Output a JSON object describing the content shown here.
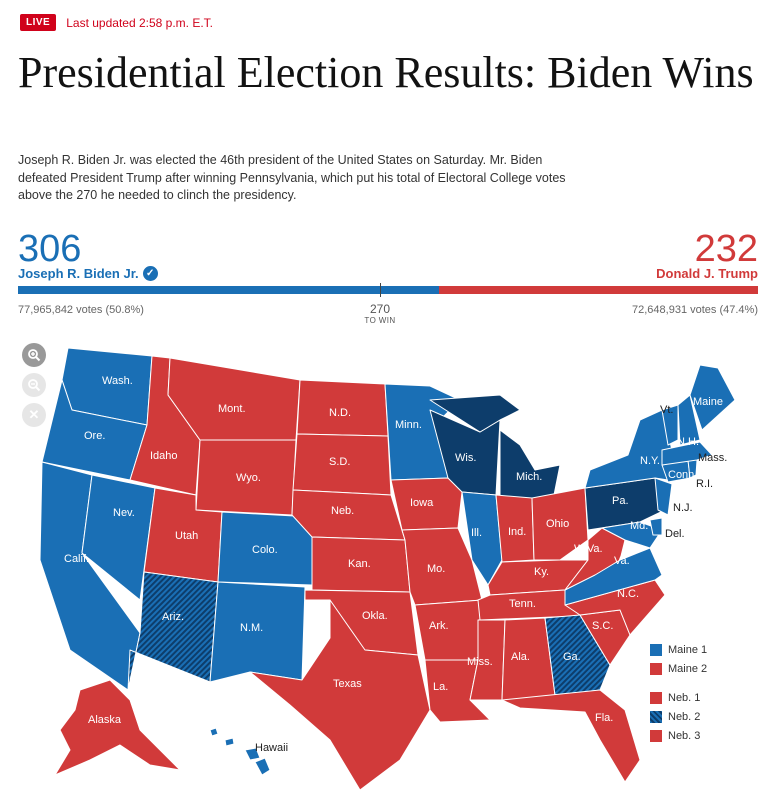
{
  "header": {
    "live_badge": "LIVE",
    "updated": "Last updated 2:58 p.m. E.T.",
    "headline": "Presidential Election Results: Biden Wins",
    "summary": "Joseph R. Biden Jr. was elected the 46th president of the United States on Saturday. Mr. Biden defeated President Trump after winning Pennsylvania, which put his total of Electoral College votes above the 270 he needed to clinch the presidency."
  },
  "colors": {
    "dem": "#1a6fb5",
    "rep": "#d13a3a",
    "dem_flip_hatch": "#0d3d6b"
  },
  "tally": {
    "biden": {
      "electoral_votes": "306",
      "name": "Joseph R. Biden Jr.",
      "popular": "77,965,842 votes (50.8%)",
      "winner_check_icon": "check-circle-icon"
    },
    "trump": {
      "electoral_votes": "232",
      "name": "Donald J. Trump",
      "popular": "72,648,931 votes (47.4%)"
    },
    "to_win": {
      "number": "270",
      "label": "TO WIN"
    },
    "biden_share_of_538": 0.5688
  },
  "map_controls": [
    {
      "icon": "zoom-in-icon"
    },
    {
      "icon": "zoom-out-icon"
    },
    {
      "icon": "close-icon"
    }
  ],
  "states": {
    "wa": "Wash.",
    "or": "Ore.",
    "ca": "Calif.",
    "nv": "Nev.",
    "id": "Idaho",
    "mt": "Mont.",
    "wy": "Wyo.",
    "ut": "Utah",
    "az": "Ariz.",
    "co": "Colo.",
    "nm": "N.M.",
    "nd": "N.D.",
    "sd": "S.D.",
    "ne": "Neb.",
    "ks": "Kan.",
    "ok": "Okla.",
    "tx": "Texas",
    "mn": "Minn.",
    "ia": "Iowa",
    "mo": "Mo.",
    "ar": "Ark.",
    "la": "La.",
    "wi": "Wis.",
    "il": "Ill.",
    "mi": "Mich.",
    "in": "Ind.",
    "oh": "Ohio",
    "ky": "Ky.",
    "tn": "Tenn.",
    "ms": "Miss.",
    "al": "Ala.",
    "ga": "Ga.",
    "fl": "Fla.",
    "sc": "S.C.",
    "nc": "N.C.",
    "va": "Va.",
    "wv": "W.Va.",
    "pa": "Pa.",
    "ny": "N.Y.",
    "vt": "Vt.",
    "nh": "N.H.",
    "me": "Maine",
    "ma": "Mass.",
    "ct": "Conn.",
    "ri": "R.I.",
    "nj": "N.J.",
    "de": "Del.",
    "md": "Md.",
    "ak": "Alaska",
    "hi": "Hawaii"
  },
  "legend": [
    {
      "label": "Maine 1",
      "party": "dem"
    },
    {
      "label": "Maine 2",
      "party": "rep"
    },
    {
      "label": "Neb. 1",
      "party": "rep"
    },
    {
      "label": "Neb. 2",
      "party": "dem-flip"
    },
    {
      "label": "Neb. 3",
      "party": "rep"
    }
  ]
}
